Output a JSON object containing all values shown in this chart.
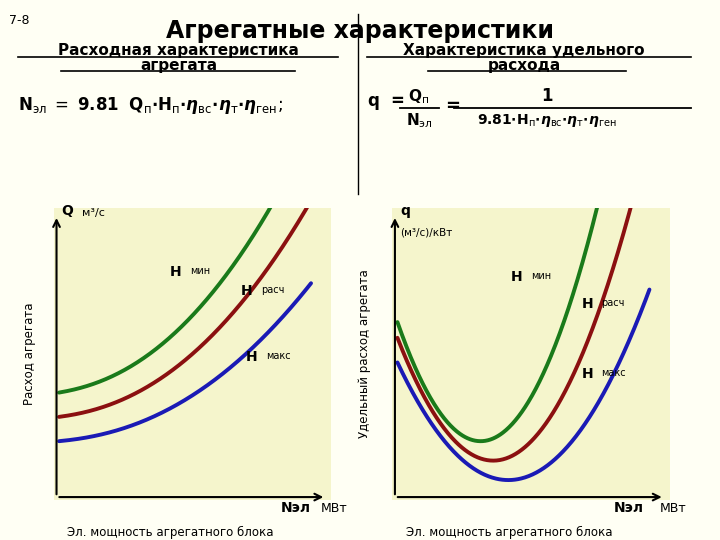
{
  "title": "Агрегатные характеристики",
  "slide_number": "7-8",
  "bg_color": "#fffff4",
  "plot_bg_color": "#f5f5cc",
  "colors": {
    "green": "#1a7a1a",
    "darkred": "#8b1010",
    "blue": "#1a1ab5"
  },
  "line_width": 2.8,
  "left_chart_title_line1": "Расходная характеристика",
  "left_chart_title_line2": "агрегата",
  "right_chart_title_line1": "Характеристика удельного",
  "right_chart_title_line2": "расхода",
  "left_ylabel": "Расход агрегата",
  "right_ylabel": "Удельный расход агрегата",
  "xlabel": "Эл. мощность агрегатного блока",
  "MVt": "МВт",
  "Nel": "Nэл",
  "H_min": "Нмин",
  "H_rach": "Нрасч",
  "H_maks": "Нмакс"
}
